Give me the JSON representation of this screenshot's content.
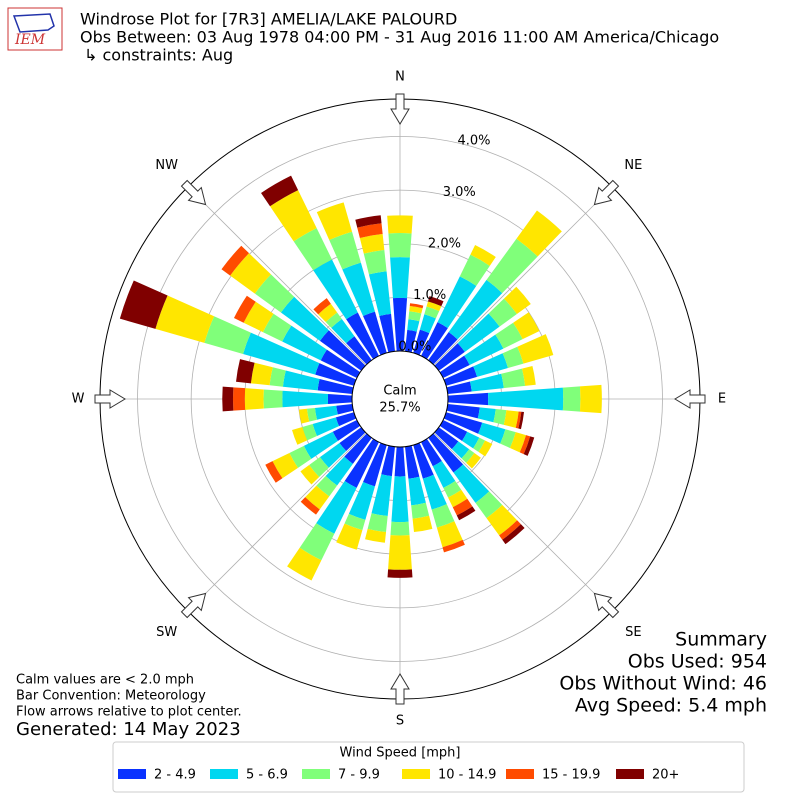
{
  "header": {
    "logo": "IEM",
    "title": "Windrose Plot for [7R3] AMELIA/LAKE PALOURD",
    "subtitle": "Obs Between: 03 Aug 1978 04:00 PM - 31 Aug 2016 11:00 AM America/Chicago",
    "constraints": "↳ constraints: Aug"
  },
  "chart_data": {
    "type": "windrose",
    "x": [
      0,
      10,
      20,
      30,
      40,
      50,
      60,
      70,
      80,
      90,
      100,
      110,
      120,
      130,
      140,
      150,
      160,
      170,
      180,
      190,
      200,
      210,
      220,
      230,
      240,
      250,
      260,
      270,
      280,
      290,
      300,
      310,
      320,
      330,
      340,
      350
    ],
    "series": [
      {
        "name": "2 - 4.9",
        "color": "#0a32ff",
        "values": [
          0.99,
          0.4,
          0.45,
          0.7,
          0.65,
          0.6,
          0.55,
          0.6,
          0.45,
          0.75,
          0.6,
          0.7,
          0.5,
          0.45,
          0.8,
          0.5,
          0.65,
          0.6,
          0.55,
          0.55,
          0.8,
          0.95,
          0.6,
          0.5,
          0.5,
          0.35,
          0.3,
          0.45,
          0.65,
          0.75,
          0.75,
          0.95,
          0.55,
          0.9,
          0.8,
          0.7
        ]
      },
      {
        "name": "5 - 6.9",
        "color": "#00d7f0",
        "values": [
          0.76,
          0.2,
          0.3,
          0.95,
          1.2,
          0.8,
          0.7,
          0.6,
          0.6,
          1.4,
          0.3,
          0.45,
          0.25,
          0.25,
          0.7,
          0.45,
          0.6,
          0.5,
          0.85,
          0.75,
          0.65,
          0.95,
          0.5,
          0.45,
          0.6,
          0.45,
          0.4,
          0.85,
          0.65,
          1.4,
          0.8,
          0.9,
          0.4,
          1.1,
          0.95,
          0.8
        ]
      },
      {
        "name": "7 - 9.9",
        "color": "#80ff7a",
        "values": [
          0.45,
          0.15,
          0.15,
          0.45,
          0.95,
          0.4,
          0.4,
          0.3,
          0.4,
          0.32,
          0.2,
          0.2,
          0.12,
          0.12,
          0.35,
          0.2,
          0.35,
          0.25,
          0.25,
          0.3,
          0.2,
          0.55,
          0.25,
          0.25,
          0.3,
          0.2,
          0.15,
          0.35,
          0.25,
          0.75,
          0.4,
          0.6,
          0.15,
          0.65,
          0.6,
          0.4
        ]
      },
      {
        "name": "10 - 14.9",
        "color": "#ffe600",
        "values": [
          0.33,
          0.1,
          0.1,
          0.2,
          0.65,
          0.32,
          0.35,
          0.58,
          0.2,
          0.4,
          0.23,
          0.2,
          0.15,
          0.15,
          0.4,
          0.2,
          0.38,
          0.25,
          0.64,
          0.2,
          0.38,
          0.42,
          0.3,
          0.2,
          0.35,
          0.2,
          0.15,
          0.35,
          0.35,
          0.95,
          0.4,
          0.57,
          0.2,
          0.79,
          0.57,
          0.3
        ]
      },
      {
        "name": "15 - 19.9",
        "color": "#ff4b00",
        "values": [
          0,
          0.05,
          0,
          0,
          0,
          0,
          0,
          0,
          0,
          0,
          0.05,
          0.08,
          0,
          0,
          0.1,
          0.17,
          0.1,
          0,
          0,
          0,
          0,
          0,
          0.12,
          0,
          0.15,
          0,
          0,
          0.22,
          0,
          0,
          0.2,
          0.2,
          0.13,
          0,
          0,
          0.2
        ]
      },
      {
        "name": "20+",
        "color": "#800000",
        "values": [
          0,
          0,
          0.1,
          0,
          0,
          0,
          0,
          0,
          0,
          0,
          0.05,
          0.08,
          0,
          0,
          0.1,
          0.1,
          0,
          0,
          0.15,
          0,
          0,
          0,
          0,
          0,
          0,
          0,
          0,
          0.2,
          0.28,
          0.69,
          0,
          0,
          0,
          0.3,
          0,
          0.15
        ]
      }
    ],
    "rlim": [
      0,
      4.7
    ],
    "rticks": [
      {
        "value": 0,
        "label": "0.0%"
      },
      {
        "value": 1,
        "label": "1.0%"
      },
      {
        "value": 2,
        "label": "2.0%"
      },
      {
        "value": 3,
        "label": "3.0%"
      },
      {
        "value": 4,
        "label": "4.0%"
      }
    ],
    "grid": true,
    "compass": [
      "N",
      "NE",
      "E",
      "SE",
      "S",
      "SW",
      "W",
      "NW"
    ],
    "calm": {
      "label": "Calm",
      "value": 25.7,
      "value_label": "25.7%"
    },
    "legend_title": "Wind Speed [mph]"
  },
  "notes": [
    "Calm values are < 2.0 mph",
    "Bar Convention: Meteorology",
    "Flow arrows relative to plot center."
  ],
  "generated": "Generated: 14 May 2023",
  "summary": {
    "title": "Summary",
    "lines": [
      "Obs Used: 954",
      "Obs Without Wind: 46",
      "Avg Speed: 5.4 mph"
    ]
  }
}
